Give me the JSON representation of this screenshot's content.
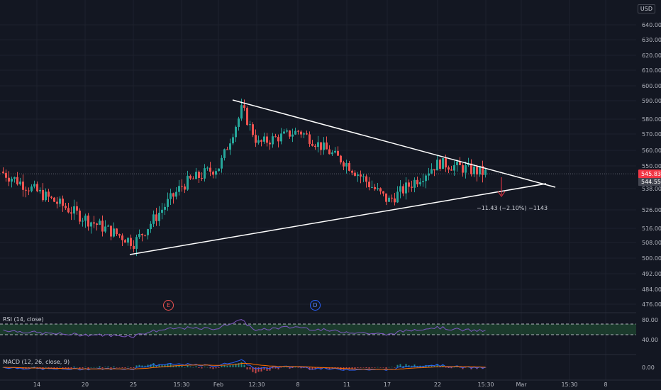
{
  "currency": "USD",
  "price_axis": [
    {
      "label": "640.00",
      "v": 640
    },
    {
      "label": "630.00",
      "v": 630
    },
    {
      "label": "620.00",
      "v": 620
    },
    {
      "label": "610.00",
      "v": 610
    },
    {
      "label": "600.00",
      "v": 600
    },
    {
      "label": "590.00",
      "v": 590
    },
    {
      "label": "580.00",
      "v": 580
    },
    {
      "label": "570.00",
      "v": 570
    },
    {
      "label": "560.00",
      "v": 560
    },
    {
      "label": "550.00",
      "v": 550
    },
    {
      "label": "538.00",
      "v": 538
    },
    {
      "label": "526.00",
      "v": 526
    },
    {
      "label": "516.00",
      "v": 516
    },
    {
      "label": "508.00",
      "v": 508
    },
    {
      "label": "500.00",
      "v": 500
    },
    {
      "label": "492.00",
      "v": 492
    },
    {
      "label": "484.00",
      "v": 484
    },
    {
      "label": "476.00",
      "v": 476
    }
  ],
  "price_tags": {
    "last": {
      "label": "545.83",
      "v": 545.83,
      "color": "#f23645"
    },
    "prev": {
      "label": "544.55",
      "v": 544.55,
      "color": "#434651"
    }
  },
  "time_axis": [
    "14",
    "20",
    "25",
    "15:30",
    "Feb",
    "12:30",
    "8",
    "11",
    "17",
    "22",
    "15:30",
    "Mar",
    "15:30",
    "8"
  ],
  "indicators": {
    "rsi": {
      "label": "RSI (14, close)",
      "levels": [
        {
          "label": "80.00",
          "v": 80
        },
        {
          "label": "40.00",
          "v": 40
        }
      ]
    },
    "macd": {
      "label": "MACD (12, 26, close, 9)",
      "levels": [
        {
          "label": "0.00",
          "v": 0
        }
      ]
    }
  },
  "events": {
    "earnings": "E",
    "dividend": "D"
  },
  "measure_text": "−11.43 (−2.10%) −1143",
  "colors": {
    "bg": "#131722",
    "up": "#26a69a",
    "down": "#ef5350",
    "rsi": "#7e57c2",
    "rsi_band": "#1f4a30",
    "macd": "#2962ff",
    "signal": "#ff6d00",
    "trendline": "#ffffff"
  },
  "chart_data": {
    "type": "candlestick",
    "x_ticks": [
      "14",
      "20",
      "25",
      "15:30",
      "Feb",
      "12:30",
      "8",
      "11",
      "17",
      "22",
      "15:30",
      "Mar",
      "15:30",
      "8"
    ],
    "y_ticks": [
      640,
      630,
      620,
      610,
      600,
      590,
      580,
      570,
      560,
      550,
      538,
      526,
      516,
      508,
      500,
      492,
      484,
      476
    ],
    "close_path": [
      {
        "x": "start",
        "y": 547
      },
      {
        "x": "14",
        "y": 536
      },
      {
        "x": "20",
        "y": 521
      },
      {
        "x": "25",
        "y": 508
      },
      {
        "x": "15:30",
        "y": 540
      },
      {
        "x": "Feb",
        "y": 550
      },
      {
        "x": "peak",
        "y": 586
      },
      {
        "x": "12:30",
        "y": 564
      },
      {
        "x": "8",
        "y": 572
      },
      {
        "x": "11",
        "y": 551
      },
      {
        "x": "17",
        "y": 531
      },
      {
        "x": "22",
        "y": 552
      },
      {
        "x": "15:30",
        "y": 546
      },
      {
        "x": "last",
        "y": 545.83
      }
    ],
    "trendlines": [
      {
        "name": "descending-resistance",
        "from": {
          "x": "12:30",
          "y": 590
        },
        "to": {
          "x": "Mar",
          "y": 541
        }
      },
      {
        "name": "ascending-support",
        "from": {
          "x": "25",
          "y": 504
        },
        "to": {
          "x": "Mar",
          "y": 541
        }
      }
    ],
    "last_price": 545.83
  }
}
